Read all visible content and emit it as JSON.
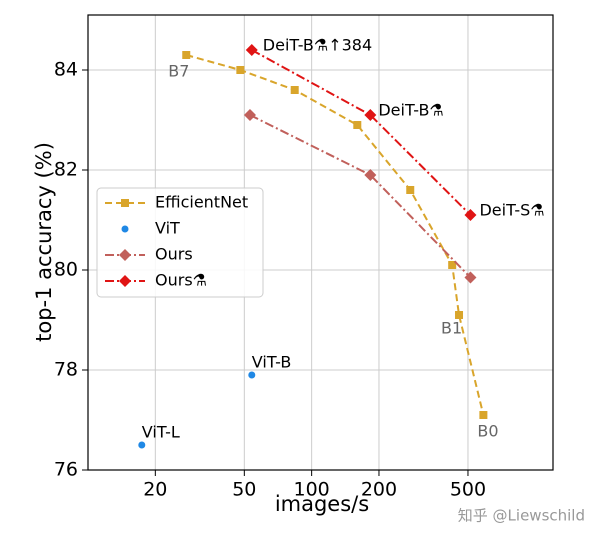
{
  "chart_data": {
    "type": "line",
    "x_label": "images/s",
    "y_label": "top-1 accuracy (%)",
    "xscale": "log",
    "xlim": [
      10,
      1200
    ],
    "xticks": [
      20,
      50,
      100,
      200,
      500
    ],
    "ylim": [
      76,
      85.1
    ],
    "yticks": [
      76,
      78,
      80,
      82,
      84
    ],
    "grid": true,
    "legend_position": "center left",
    "series": [
      {
        "name": "EfficientNet",
        "color": "#d9a52b",
        "linestyle": "dashed",
        "marker": "square",
        "x": [
          27.5,
          48,
          84,
          160,
          276,
          425,
          456,
          586
        ],
        "values": [
          84.3,
          84.0,
          83.6,
          82.9,
          81.6,
          80.1,
          79.1,
          77.1
        ],
        "point_labels": [
          "B7",
          null,
          null,
          null,
          null,
          null,
          "B1",
          "B0"
        ]
      },
      {
        "name": "ViT",
        "color": "#1f88e5",
        "linestyle": "none",
        "marker": "circle",
        "x": [
          54,
          17.4
        ],
        "values": [
          77.9,
          76.5
        ],
        "point_labels": [
          "ViT-B",
          "ViT-L"
        ]
      },
      {
        "name": "Ours",
        "color": "#c1605b",
        "linestyle": "dashdot",
        "marker": "diamond",
        "x": [
          53,
          183,
          513
        ],
        "values": [
          83.1,
          81.9,
          79.85
        ],
        "point_labels": [
          null,
          null,
          null
        ]
      },
      {
        "name": "Ours⚗",
        "color": "#e01414",
        "linestyle": "dashdot",
        "marker": "diamond",
        "x": [
          54,
          183,
          513
        ],
        "values": [
          84.4,
          83.1,
          81.1
        ],
        "point_labels": [
          "DeiT-B⚗↑384",
          "DeiT-B⚗",
          "DeiT-S⚗"
        ]
      }
    ]
  },
  "watermark": "知乎 @Liewschild"
}
